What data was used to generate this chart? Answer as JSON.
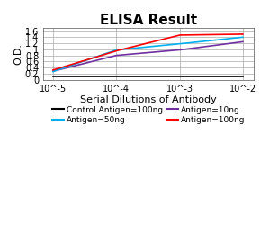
{
  "title": "ELISA Result",
  "ylabel": "O.D.",
  "xlabel": "Serial Dilutions of Antibody",
  "x_values": [
    0.01,
    0.001,
    0.0001,
    1e-05
  ],
  "series": [
    {
      "label": "Control Antigen=100ng",
      "color": "#000000",
      "y_values": [
        0.1,
        0.1,
        0.1,
        0.1
      ]
    },
    {
      "label": "Antigen=10ng",
      "color": "#7030A0",
      "y_values": [
        1.25,
        0.98,
        0.8,
        0.28
      ]
    },
    {
      "label": "Antigen=50ng",
      "color": "#00B0F0",
      "y_values": [
        1.4,
        1.18,
        0.98,
        0.27
      ]
    },
    {
      "label": "Antigen=100ng",
      "color": "#FF0000",
      "y_values": [
        1.5,
        1.47,
        0.95,
        0.32
      ]
    }
  ],
  "ylim": [
    0,
    1.7
  ],
  "yticks": [
    0,
    0.2,
    0.4,
    0.6,
    0.8,
    1.0,
    1.2,
    1.4,
    1.6
  ],
  "ytick_labels": [
    "0",
    "0.2",
    "0.4",
    "0.6",
    "0.8",
    "1",
    "1.2",
    "1.4",
    "1.6"
  ],
  "xtick_labels": [
    "10^-2",
    "10^-3",
    "10^-4",
    "10^-5"
  ],
  "xtick_positions": [
    0.01,
    0.001,
    0.0001,
    1e-05
  ],
  "background_color": "#ffffff",
  "grid_color": "#aaaaaa",
  "title_fontsize": 11,
  "label_fontsize": 8,
  "tick_fontsize": 7,
  "legend_fontsize": 6.5
}
